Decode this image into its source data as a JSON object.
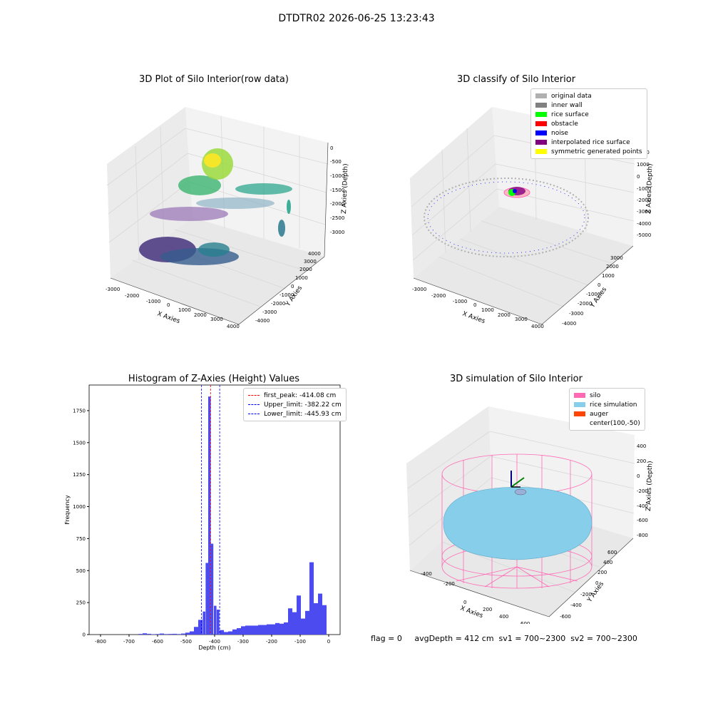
{
  "suptitle": "DTDTR02 2026-06-25 13:23:43",
  "status_line": "flag = 0     avgDepth = 412 cm  sv1 = 700~2300  sv2 = 700~2300",
  "chart_data": [
    {
      "type": "scatter",
      "title": "3D Plot of Silo Interior(row data)",
      "xlabel": "X Axies",
      "ylabel": "Y Axies",
      "zlabel": "Z Axies (Depth)",
      "x_ticks": [
        "-3000",
        "-2000",
        "-1000",
        "0",
        "1000",
        "2000",
        "3000",
        "4000"
      ],
      "y_ticks": [
        "-4000",
        "-3000",
        "-2000",
        "-1000",
        "0",
        "1000",
        "2000",
        "3000",
        "4000"
      ],
      "z_ticks": [
        "-3000",
        "-2500",
        "-2000",
        "-1500",
        "-1000",
        "-500",
        "0"
      ],
      "grid": true
    },
    {
      "type": "scatter",
      "title": "3D classify of Silo Interior",
      "xlabel": "X Axies",
      "ylabel": "Y Axies",
      "zlabel": "Z Axies (Depth)",
      "x_ticks": [
        "-3000",
        "-2000",
        "-1000",
        "0",
        "1000",
        "2000",
        "3000",
        "4000"
      ],
      "y_ticks": [
        "-4000",
        "-3000",
        "-2000",
        "-1000",
        "0",
        "1000",
        "2000",
        "3000"
      ],
      "z_ticks": [
        "-5000",
        "-4000",
        "-3000",
        "-2000",
        "-1000",
        "0",
        "1000",
        "2000"
      ],
      "legend_position": "top-right",
      "legend": [
        {
          "label": "original data",
          "color": "#b0b0b0"
        },
        {
          "label": "inner wall",
          "color": "#808080"
        },
        {
          "label": "rice surface",
          "color": "#00ff00"
        },
        {
          "label": "obstacle",
          "color": "#ff0000"
        },
        {
          "label": "noise",
          "color": "#0000ff"
        },
        {
          "label": "interpolated rice surface",
          "color": "#800080"
        },
        {
          "label": "symmetric generated points",
          "color": "#ffff00"
        }
      ],
      "grid": true
    },
    {
      "type": "bar",
      "title": "Histogram of Z-Axies (Height) Values",
      "xlabel": "Depth (cm)",
      "ylabel": "Frequency",
      "xlim": [
        -840,
        40
      ],
      "ylim": [
        0,
        1950
      ],
      "x_ticks": [
        -800,
        -700,
        -600,
        -500,
        -400,
        -300,
        -200,
        -100,
        0
      ],
      "y_ticks": [
        0,
        250,
        500,
        750,
        1000,
        1250,
        1500,
        1750
      ],
      "bar_color": "#4b4bf0",
      "bin_width": 15,
      "bins": [
        {
          "x": -660,
          "v": 5
        },
        {
          "x": -645,
          "v": 10
        },
        {
          "x": -630,
          "v": 6
        },
        {
          "x": -615,
          "v": 3
        },
        {
          "x": -600,
          "v": 4
        },
        {
          "x": -585,
          "v": 8
        },
        {
          "x": -570,
          "v": 4
        },
        {
          "x": -555,
          "v": 5
        },
        {
          "x": -540,
          "v": 6
        },
        {
          "x": -525,
          "v": 4
        },
        {
          "x": -510,
          "v": 8
        },
        {
          "x": -495,
          "v": 15
        },
        {
          "x": -480,
          "v": 25
        },
        {
          "x": -465,
          "v": 60
        },
        {
          "x": -450,
          "v": 115
        },
        {
          "x": -437,
          "v": 180
        },
        {
          "x": -427,
          "v": 560
        },
        {
          "x": -418,
          "v": 1860
        },
        {
          "x": -409,
          "v": 710
        },
        {
          "x": -398,
          "v": 225
        },
        {
          "x": -388,
          "v": 195
        },
        {
          "x": -375,
          "v": 35
        },
        {
          "x": -360,
          "v": 20
        },
        {
          "x": -345,
          "v": 25
        },
        {
          "x": -330,
          "v": 40
        },
        {
          "x": -315,
          "v": 50
        },
        {
          "x": -300,
          "v": 65
        },
        {
          "x": -285,
          "v": 70
        },
        {
          "x": -270,
          "v": 70
        },
        {
          "x": -255,
          "v": 70
        },
        {
          "x": -240,
          "v": 75
        },
        {
          "x": -225,
          "v": 75
        },
        {
          "x": -210,
          "v": 80
        },
        {
          "x": -195,
          "v": 80
        },
        {
          "x": -180,
          "v": 90
        },
        {
          "x": -165,
          "v": 85
        },
        {
          "x": -150,
          "v": 95
        },
        {
          "x": -135,
          "v": 205
        },
        {
          "x": -120,
          "v": 175
        },
        {
          "x": -105,
          "v": 305
        },
        {
          "x": -90,
          "v": 125
        },
        {
          "x": -75,
          "v": 185
        },
        {
          "x": -60,
          "v": 565
        },
        {
          "x": -45,
          "v": 245
        },
        {
          "x": -30,
          "v": 320
        },
        {
          "x": -15,
          "v": 230
        }
      ],
      "vlines": [
        {
          "label": "first_peak: -414.08 cm",
          "x": -414.08,
          "color": "#ff0000"
        },
        {
          "label": "Upper_limit: -382.22 cm",
          "x": -382.22,
          "color": "#0000ff"
        },
        {
          "label": "Lower_limit: -445.93 cm",
          "x": -445.93,
          "color": "#0000ff"
        }
      ],
      "legend_position": "top-right"
    },
    {
      "type": "scatter",
      "title": "3D simulation of Silo Interior",
      "xlabel": "X Axies",
      "ylabel": "Y Axies",
      "zlabel": "Z Axies (Depth)",
      "x_ticks": [
        "-400",
        "-200",
        "0",
        "200",
        "400",
        "600"
      ],
      "y_ticks": [
        "-600",
        "-400",
        "-200",
        "0",
        "200",
        "400",
        "600"
      ],
      "z_ticks": [
        "-800",
        "-600",
        "-400",
        "-200",
        "0",
        "200",
        "400"
      ],
      "legend_position": "top-right",
      "legend": [
        {
          "label": "silo",
          "color": "#ff69b4"
        },
        {
          "label": "rice simulation",
          "color": "#87ceeb"
        },
        {
          "label": "auger",
          "color": "#ff4500"
        },
        {
          "label": "center(100,-50)",
          "color": ""
        }
      ],
      "grid": true
    }
  ]
}
